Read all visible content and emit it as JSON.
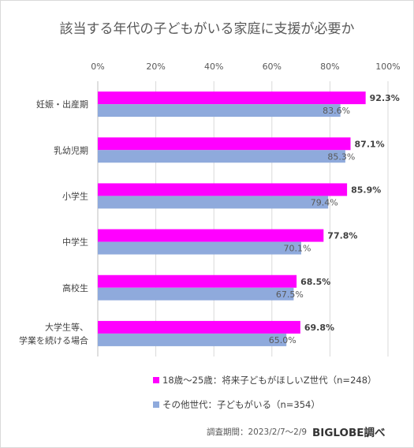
{
  "title": "該当する年代の子どもがいる家庭に支援が必要か",
  "chart_data": {
    "type": "bar",
    "orientation": "horizontal",
    "categories": [
      [
        "妊娠・出産期"
      ],
      [
        "乳幼児期"
      ],
      [
        "小学生"
      ],
      [
        "中学生"
      ],
      [
        "高校生"
      ],
      [
        "大学生等、",
        "学業を続ける場合"
      ]
    ],
    "series": [
      {
        "name": "18歳〜25歳：将来子どもがほしいZ世代（n=248）",
        "values": [
          92.3,
          87.1,
          85.9,
          77.8,
          68.5,
          69.8
        ],
        "color": "#ff00ff"
      },
      {
        "name": "その他世代：子どもがいる（n=354）",
        "values": [
          83.6,
          85.3,
          79.4,
          70.1,
          67.5,
          65.0
        ],
        "color": "#8faadc"
      }
    ],
    "x_ticks": [
      "0%",
      "20%",
      "40%",
      "60%",
      "80%",
      "100%"
    ],
    "xlim": [
      0,
      100
    ],
    "value_suffix": "%",
    "grid": true,
    "axis_position": "top",
    "legend_position": "bottom"
  },
  "source": "調査期間：2023/2/7〜2/9",
  "brand": "BIGLOBE調べ"
}
